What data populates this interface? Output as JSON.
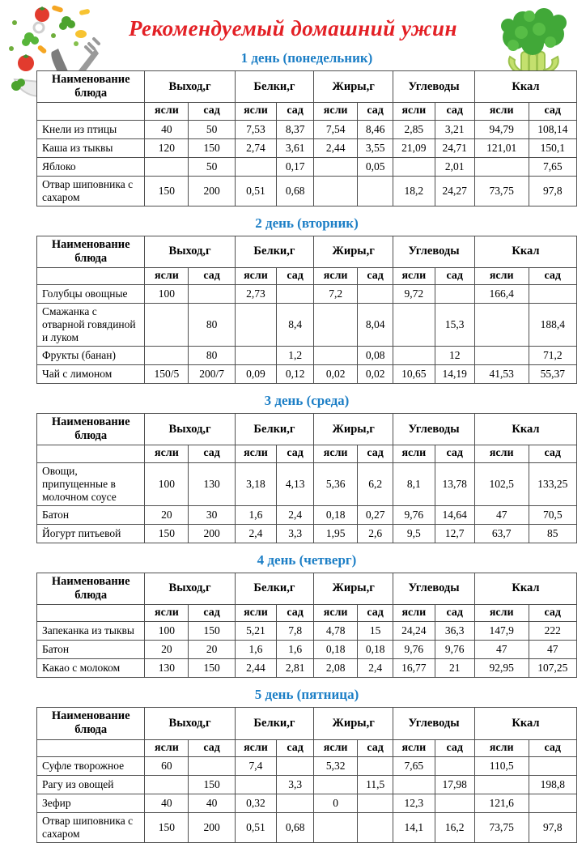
{
  "page": {
    "title": "Рекомендуемый домашний ужин"
  },
  "colors": {
    "title": "#e32025",
    "day_heading": "#1d7fc6",
    "table_border": "#4f4f4f"
  },
  "decorations": {
    "left": "vegetables-bowl-clipart",
    "right": "celery-clipart"
  },
  "table": {
    "name_header": "Наименование блюда",
    "group_headers": [
      "Выход,г",
      "Белки,г",
      "Жиры,г",
      "Углеводы",
      "Ккал"
    ],
    "sub_headers": [
      "ясли",
      "сад"
    ],
    "col_widths": [
      "20%",
      "8.1%",
      "8.6%",
      "7.7%",
      "6.9%",
      "8.1%",
      "6.6%",
      "7.7%",
      "7.4%",
      "10%",
      "8.9%"
    ]
  },
  "days": [
    {
      "title": "1 день (понедельник)",
      "rows": [
        {
          "name": "Кнели из птицы",
          "values": [
            "40",
            "50",
            "7,53",
            "8,37",
            "7,54",
            "8,46",
            "2,85",
            "3,21",
            "94,79",
            "108,14"
          ]
        },
        {
          "name": "Каша из тыквы",
          "values": [
            "120",
            "150",
            "2,74",
            "3,61",
            "2,44",
            "3,55",
            "21,09",
            "24,71",
            "121,01",
            "150,1"
          ]
        },
        {
          "name": "Яблоко",
          "values": [
            "",
            "50",
            "",
            "0,17",
            "",
            "0,05",
            "",
            "2,01",
            "",
            "7,65"
          ]
        },
        {
          "name": "Отвар шиповника с сахаром",
          "values": [
            "150",
            "200",
            "0,51",
            "0,68",
            "",
            "",
            "18,2",
            "24,27",
            "73,75",
            "97,8"
          ]
        }
      ]
    },
    {
      "title": "2 день (вторник)",
      "rows": [
        {
          "name": "Голубцы овощные",
          "values": [
            "100",
            "",
            "2,73",
            "",
            "7,2",
            "",
            "9,72",
            "",
            "166,4",
            ""
          ]
        },
        {
          "name": "Смажанка с отварной говядиной и луком",
          "values": [
            "",
            "80",
            "",
            "8,4",
            "",
            "8,04",
            "",
            "15,3",
            "",
            "188,4"
          ]
        },
        {
          "name": "Фрукты (банан)",
          "values": [
            "",
            "80",
            "",
            "1,2",
            "",
            "0,08",
            "",
            "12",
            "",
            "71,2"
          ]
        },
        {
          "name": "Чай с лимоном",
          "values": [
            "150/5",
            "200/7",
            "0,09",
            "0,12",
            "0,02",
            "0,02",
            "10,65",
            "14,19",
            "41,53",
            "55,37"
          ]
        }
      ]
    },
    {
      "title": "3 день (среда)",
      "rows": [
        {
          "name": "Овощи, припущенные в молочном соусе",
          "values": [
            "100",
            "130",
            "3,18",
            "4,13",
            "5,36",
            "6,2",
            "8,1",
            "13,78",
            "102,5",
            "133,25"
          ]
        },
        {
          "name": "Батон",
          "values": [
            "20",
            "30",
            "1,6",
            "2,4",
            "0,18",
            "0,27",
            "9,76",
            "14,64",
            "47",
            "70,5"
          ]
        },
        {
          "name": "Йогурт питьевой",
          "values": [
            "150",
            "200",
            "2,4",
            "3,3",
            "1,95",
            "2,6",
            "9,5",
            "12,7",
            "63,7",
            "85"
          ]
        }
      ]
    },
    {
      "title": "4 день (четверг)",
      "rows": [
        {
          "name": "Запеканка из тыквы",
          "values": [
            "100",
            "150",
            "5,21",
            "7,8",
            "4,78",
            "15",
            "24,24",
            "36,3",
            "147,9",
            "222"
          ]
        },
        {
          "name": "Батон",
          "values": [
            "20",
            "20",
            "1,6",
            "1,6",
            "0,18",
            "0,18",
            "9,76",
            "9,76",
            "47",
            "47"
          ]
        },
        {
          "name": "Какао с молоком",
          "values": [
            "130",
            "150",
            "2,44",
            "2,81",
            "2,08",
            "2,4",
            "16,77",
            "21",
            "92,95",
            "107,25"
          ]
        }
      ]
    },
    {
      "title": "5 день (пятница)",
      "rows": [
        {
          "name": "Суфле творожное",
          "values": [
            "60",
            "",
            "7,4",
            "",
            "5,32",
            "",
            "7,65",
            "",
            "110,5",
            ""
          ]
        },
        {
          "name": "Рагу из овощей",
          "values": [
            "",
            "150",
            "",
            "3,3",
            "",
            "11,5",
            "",
            "17,98",
            "",
            "198,8"
          ]
        },
        {
          "name": "Зефир",
          "values": [
            "40",
            "40",
            "0,32",
            "",
            "0",
            "",
            "12,3",
            "",
            "121,6",
            ""
          ]
        },
        {
          "name": "Отвар шиповника с сахаром",
          "values": [
            "150",
            "200",
            "0,51",
            "0,68",
            "",
            "",
            "14,1",
            "16,2",
            "73,75",
            "97,8"
          ]
        }
      ]
    }
  ]
}
